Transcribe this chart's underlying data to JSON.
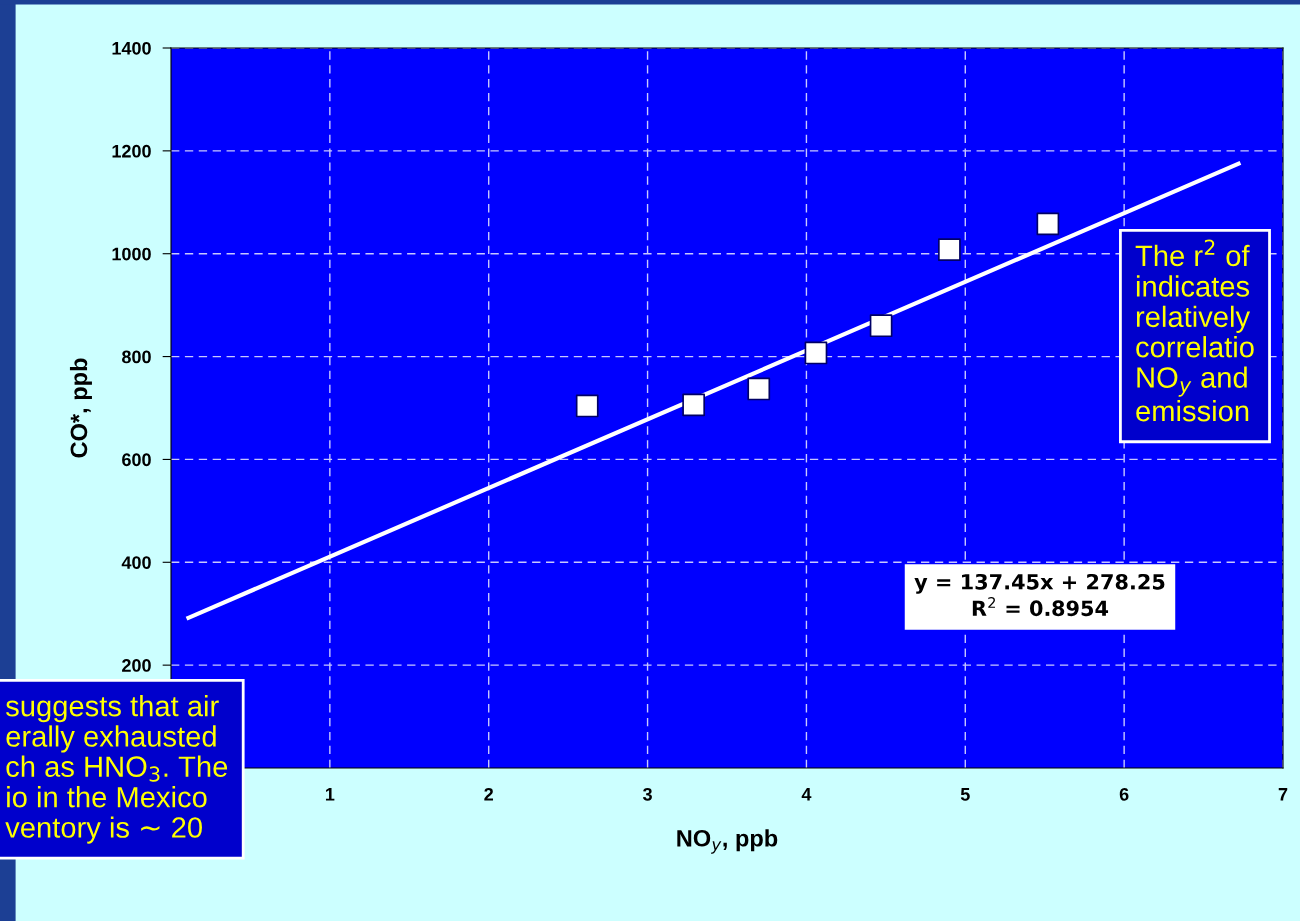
{
  "chart_data": {
    "type": "scatter",
    "xlabel": "NO$_{y}$, ppb",
    "ylabel": "CO*, ppb",
    "xlim": [
      0,
      7
    ],
    "xticks": [
      1,
      2,
      3,
      4,
      5,
      6,
      7
    ],
    "ylim": [
      0,
      1400
    ],
    "yticks": [
      200,
      400,
      600,
      800,
      1000,
      1200,
      1400
    ],
    "grid": true,
    "series": [
      {
        "marker": "square",
        "color": "#ffffff",
        "x": [
          2.62,
          3.29,
          3.7,
          4.06,
          4.47,
          4.9,
          5.52
        ],
        "values": [
          704,
          706,
          737,
          807,
          860,
          1008,
          1058
        ]
      },
      {
        "type": "line",
        "color": "#ffffff",
        "x": [
          0.11,
          6.72
        ],
        "values": [
          292,
          1175
        ]
      }
    ],
    "annotations": [
      "y = 137.45x + 278.25\nR$^{2}$ = 0.8954",
      "The r$^{2}$ of\nindicates\nrelatively\ncorrelatio\nNO$_{y}$ and\nemission",
      "suggests that air\nerally exhausted\nch as HNO$_{3}$. The\nio in the Mexico\nventory is ∼ 20"
    ]
  }
}
